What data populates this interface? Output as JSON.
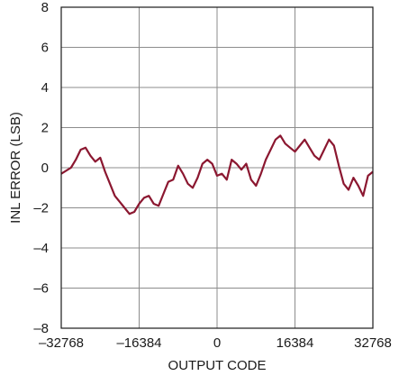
{
  "chart_data": {
    "type": "line",
    "xlabel": "OUTPUT CODE",
    "ylabel": "INL ERROR (LSB)",
    "xlim": [
      -32768,
      32768
    ],
    "ylim": [
      -8,
      8
    ],
    "x_ticks": [
      "–32768",
      "–16384",
      "0",
      "16384",
      "32768"
    ],
    "y_ticks": [
      "8",
      "6",
      "4",
      "2",
      "0",
      "–2",
      "–4",
      "–6",
      "–8"
    ],
    "x_tick_values": [
      -32768,
      -16384,
      0,
      16384,
      32768
    ],
    "y_tick_values": [
      8,
      6,
      4,
      2,
      0,
      -2,
      -4,
      -6,
      -8
    ],
    "grid": true,
    "series": [
      {
        "color": "#8b1730",
        "x": [
          -32768,
          -30720,
          -29696,
          -28672,
          -27648,
          -26624,
          -25600,
          -24576,
          -23552,
          -22528,
          -21504,
          -20480,
          -19456,
          -18432,
          -17408,
          -16384,
          -15360,
          -14336,
          -13312,
          -12288,
          -11264,
          -10240,
          -9216,
          -8192,
          -7168,
          -6144,
          -5120,
          -4096,
          -3072,
          -2048,
          -1024,
          0,
          1024,
          2048,
          3072,
          4096,
          5120,
          6144,
          7168,
          8192,
          9216,
          10240,
          11264,
          12288,
          13312,
          14336,
          15360,
          16384,
          17408,
          18432,
          19456,
          20480,
          21504,
          22528,
          23552,
          24576,
          25600,
          26624,
          27648,
          28672,
          29696,
          30720,
          31744,
          32768
        ],
        "y": [
          -0.3,
          0.0,
          0.4,
          0.9,
          1.0,
          0.6,
          0.3,
          0.5,
          -0.2,
          -0.8,
          -1.4,
          -1.7,
          -2.0,
          -2.3,
          -2.2,
          -1.8,
          -1.5,
          -1.4,
          -1.8,
          -1.9,
          -1.3,
          -0.7,
          -0.6,
          0.1,
          -0.3,
          -0.8,
          -1.0,
          -0.5,
          0.2,
          0.4,
          0.2,
          -0.4,
          -0.3,
          -0.6,
          0.4,
          0.2,
          -0.1,
          0.2,
          -0.6,
          -0.9,
          -0.3,
          0.4,
          0.9,
          1.4,
          1.6,
          1.2,
          1.0,
          0.8,
          1.1,
          1.4,
          1.0,
          0.6,
          0.4,
          0.9,
          1.4,
          1.1,
          0.1,
          -0.8,
          -1.1,
          -0.5,
          -0.9,
          -1.4,
          -0.4,
          -0.2
        ]
      }
    ]
  }
}
